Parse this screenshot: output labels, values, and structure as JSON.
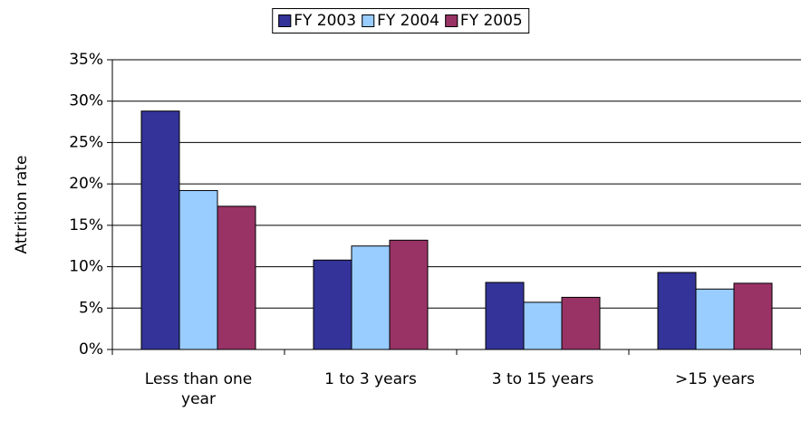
{
  "chart_data": {
    "type": "bar",
    "categories": [
      "Less than one year",
      "1 to 3 years",
      "3 to 15 years",
      ">15 years"
    ],
    "series": [
      {
        "name": "FY 2003",
        "color": "#333399",
        "values": [
          28.8,
          10.8,
          8.1,
          9.3
        ]
      },
      {
        "name": "FY 2004",
        "color": "#99ccff",
        "values": [
          19.2,
          12.5,
          5.7,
          7.3
        ]
      },
      {
        "name": "FY 2005",
        "color": "#993366",
        "values": [
          17.3,
          13.2,
          6.3,
          8.0
        ]
      }
    ],
    "y_label": "Attrition rate",
    "ylim": [
      0,
      35
    ],
    "yticks": [
      {
        "value": 0,
        "label": "0%"
      },
      {
        "value": 5,
        "label": "5%"
      },
      {
        "value": 10,
        "label": "10%"
      },
      {
        "value": 15,
        "label": "15%"
      },
      {
        "value": 20,
        "label": "20%"
      },
      {
        "value": 25,
        "label": "25%"
      },
      {
        "value": 30,
        "label": "30%"
      },
      {
        "value": 35,
        "label": "35%"
      }
    ],
    "grid": true,
    "legend": "top"
  }
}
